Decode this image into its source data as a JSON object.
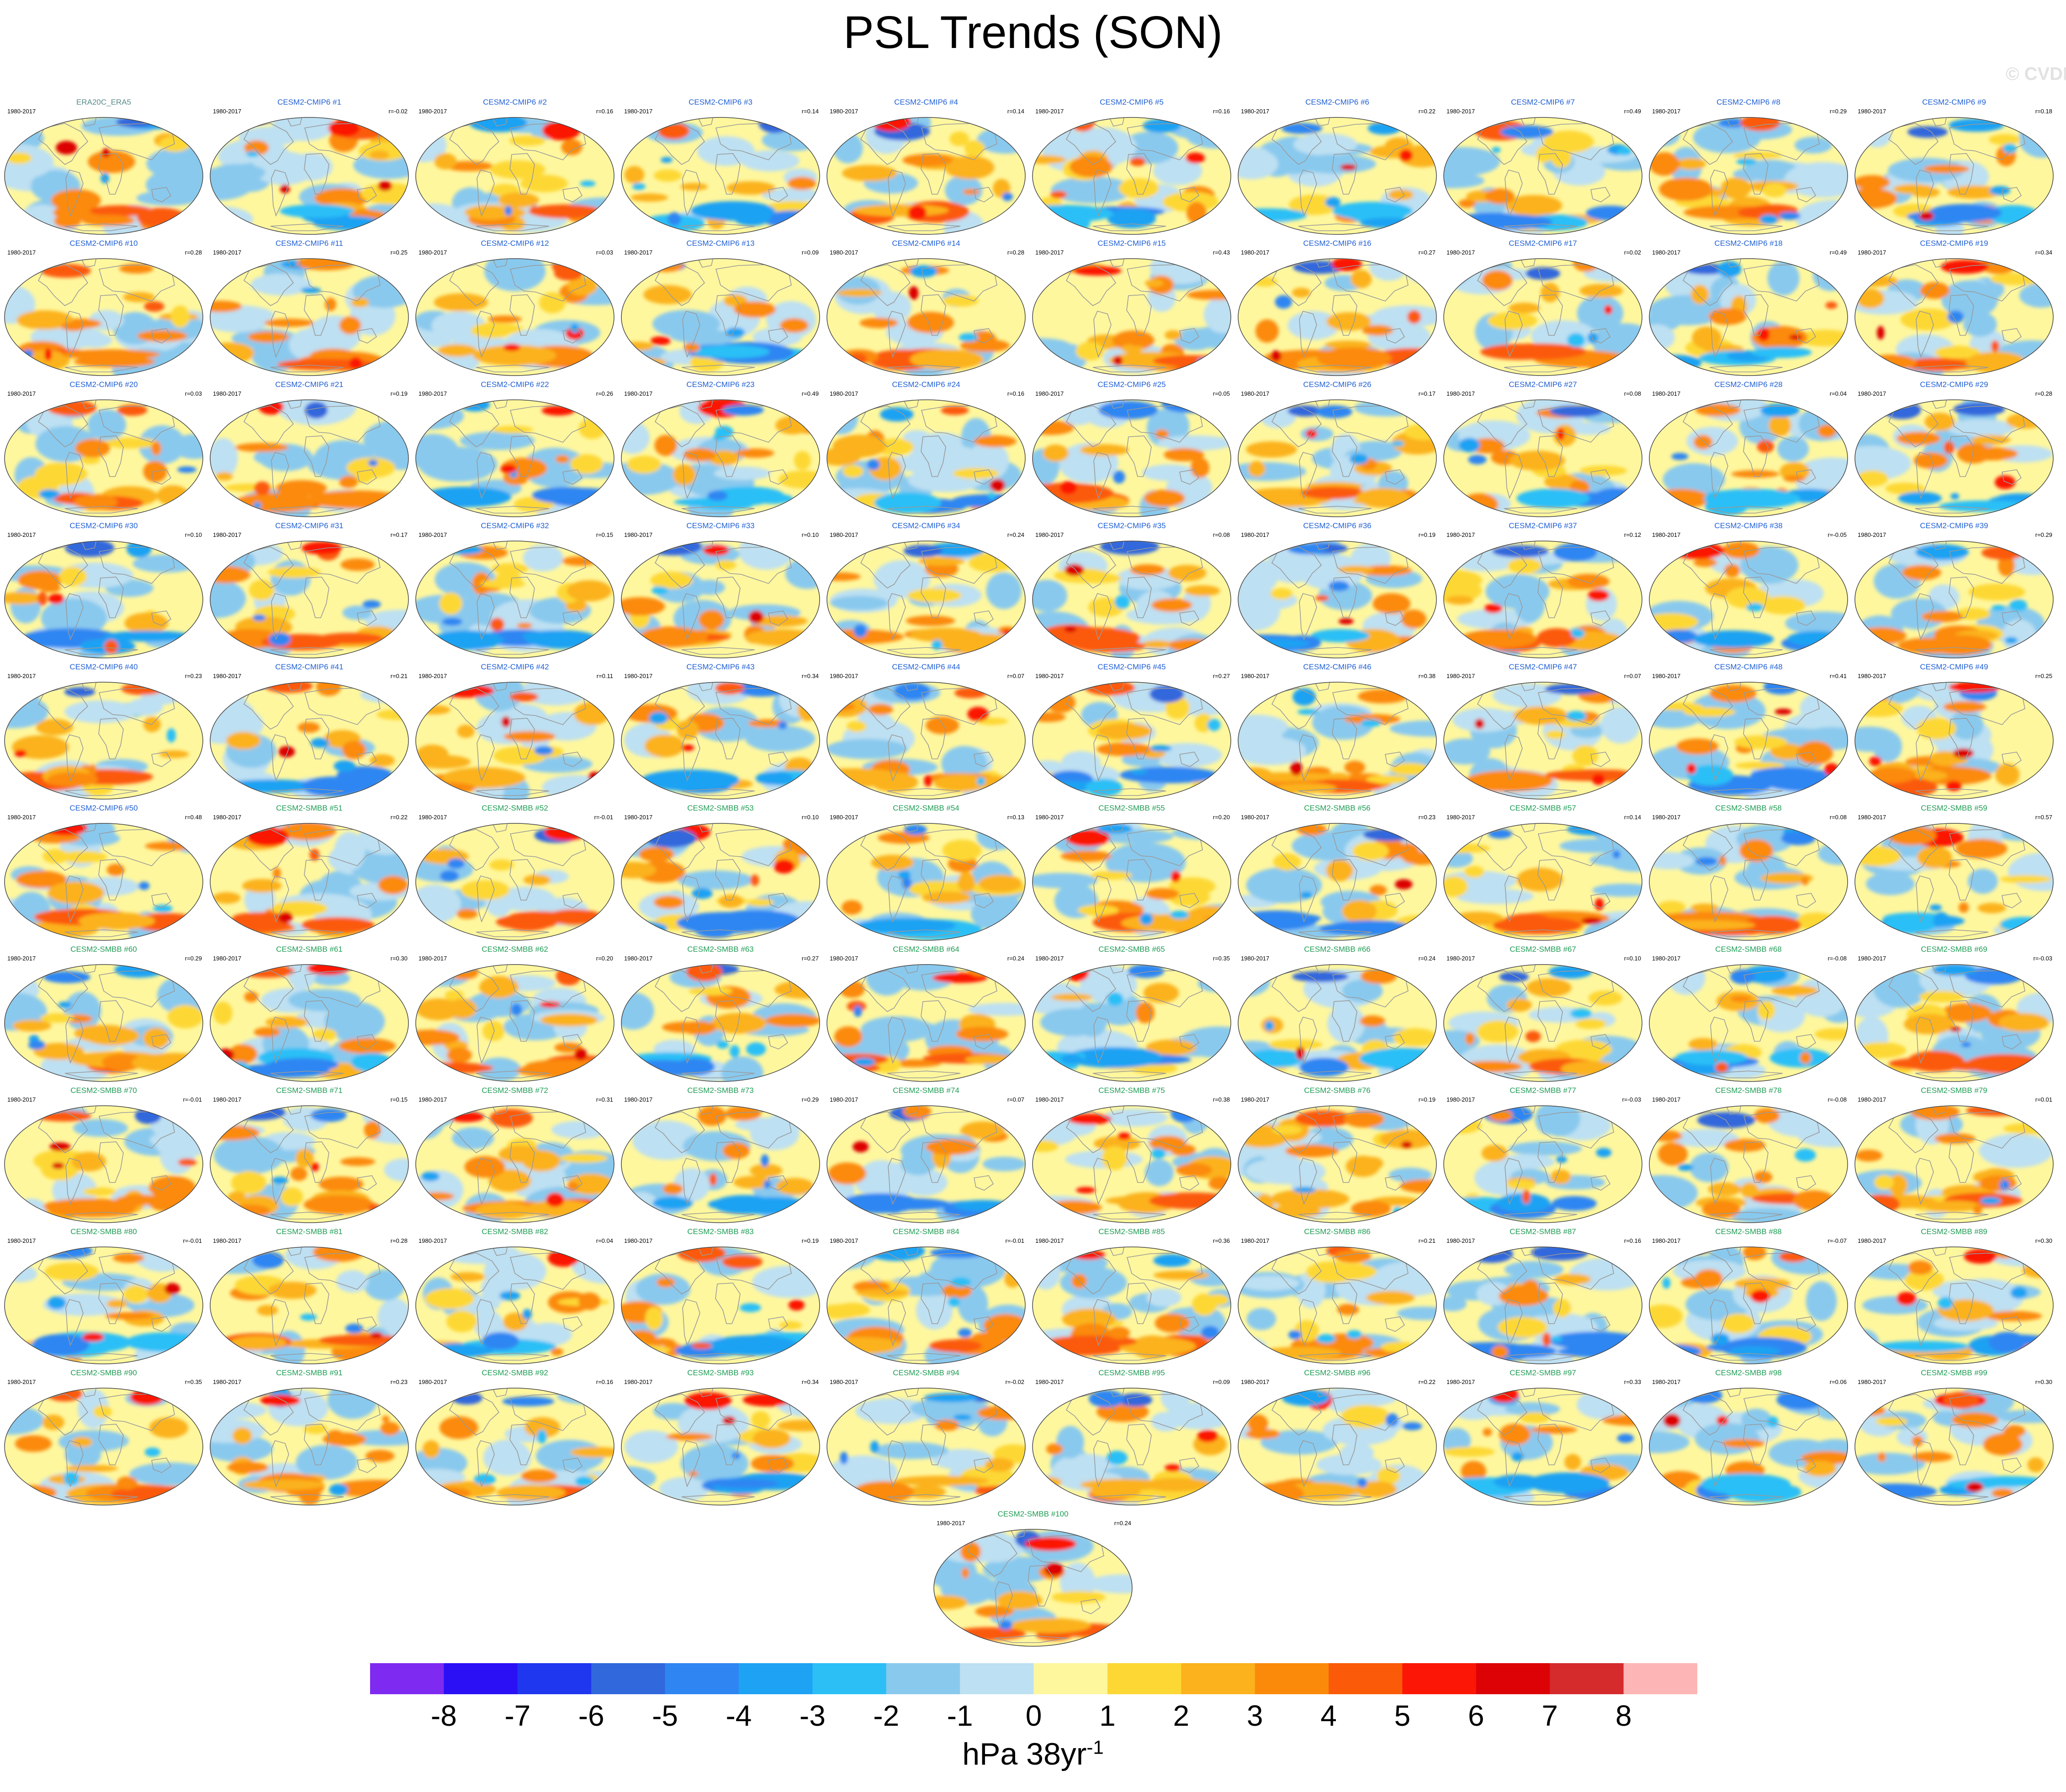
{
  "title": "PSL Trends (SON)",
  "watermark": "© CVDP-LE",
  "colorbar": {
    "colors": [
      "#7f2af0",
      "#2b10f5",
      "#1f37ef",
      "#3168dc",
      "#2f86f2",
      "#1ea2f3",
      "#2cbff6",
      "#89c9ee",
      "#bde0f2",
      "#fff79e",
      "#fdd834",
      "#fbb21d",
      "#fb8a0b",
      "#fb5a08",
      "#fb1606",
      "#dc0205",
      "#d52b2c",
      "#fdb6b5"
    ],
    "tick_labels": [
      "-8",
      "-7",
      "-6",
      "-5",
      "-4",
      "-3",
      "-2",
      "-1",
      "0",
      "1",
      "2",
      "3",
      "4",
      "5",
      "6",
      "7",
      "8"
    ],
    "units_main": "hPa 38yr",
    "units_sup": "-1"
  },
  "chart_data": {
    "type": "map-panel-grid",
    "title": "PSL Trends (SON)",
    "variable": "PSL",
    "season": "SON",
    "units": "hPa 38yr-1",
    "colorbar_range": [
      -8,
      8
    ],
    "colorbar_interval": 1,
    "projection": "Robinson",
    "panels": [
      {
        "name": "ERA20C_ERA5",
        "period": "1980-2017",
        "r": "",
        "reference": true
      },
      {
        "name": "CESM2-CMIP6 #1",
        "period": "1980-2017",
        "r": "r=-0.02"
      },
      {
        "name": "CESM2-CMIP6 #2",
        "period": "1980-2017",
        "r": "r=0.16"
      },
      {
        "name": "CESM2-CMIP6 #3",
        "period": "1980-2017",
        "r": "r=0.14"
      },
      {
        "name": "CESM2-CMIP6 #4",
        "period": "1980-2017",
        "r": "r=0.14"
      },
      {
        "name": "CESM2-CMIP6 #5",
        "period": "1980-2017",
        "r": "r=0.16"
      },
      {
        "name": "CESM2-CMIP6 #6",
        "period": "1980-2017",
        "r": "r=0.22"
      },
      {
        "name": "CESM2-CMIP6 #7",
        "period": "1980-2017",
        "r": "r=0.49"
      },
      {
        "name": "CESM2-CMIP6 #8",
        "period": "1980-2017",
        "r": "r=0.29"
      },
      {
        "name": "CESM2-CMIP6 #9",
        "period": "1980-2017",
        "r": "r=0.18"
      },
      {
        "name": "CESM2-CMIP6 #10",
        "period": "1980-2017",
        "r": "r=0.28"
      },
      {
        "name": "CESM2-CMIP6 #11",
        "period": "1980-2017",
        "r": "r=0.25"
      },
      {
        "name": "CESM2-CMIP6 #12",
        "period": "1980-2017",
        "r": "r=0.03"
      },
      {
        "name": "CESM2-CMIP6 #13",
        "period": "1980-2017",
        "r": "r=0.09"
      },
      {
        "name": "CESM2-CMIP6 #14",
        "period": "1980-2017",
        "r": "r=0.28"
      },
      {
        "name": "CESM2-CMIP6 #15",
        "period": "1980-2017",
        "r": "r=0.43"
      },
      {
        "name": "CESM2-CMIP6 #16",
        "period": "1980-2017",
        "r": "r=0.27"
      },
      {
        "name": "CESM2-CMIP6 #17",
        "period": "1980-2017",
        "r": "r=0.02"
      },
      {
        "name": "CESM2-CMIP6 #18",
        "period": "1980-2017",
        "r": "r=0.49"
      },
      {
        "name": "CESM2-CMIP6 #19",
        "period": "1980-2017",
        "r": "r=0.34"
      },
      {
        "name": "CESM2-CMIP6 #20",
        "period": "1980-2017",
        "r": "r=0.03"
      },
      {
        "name": "CESM2-CMIP6 #21",
        "period": "1980-2017",
        "r": "r=0.19"
      },
      {
        "name": "CESM2-CMIP6 #22",
        "period": "1980-2017",
        "r": "r=0.26"
      },
      {
        "name": "CESM2-CMIP6 #23",
        "period": "1980-2017",
        "r": "r=0.49"
      },
      {
        "name": "CESM2-CMIP6 #24",
        "period": "1980-2017",
        "r": "r=0.16"
      },
      {
        "name": "CESM2-CMIP6 #25",
        "period": "1980-2017",
        "r": "r=0.05"
      },
      {
        "name": "CESM2-CMIP6 #26",
        "period": "1980-2017",
        "r": "r=0.17"
      },
      {
        "name": "CESM2-CMIP6 #27",
        "period": "1980-2017",
        "r": "r=0.08"
      },
      {
        "name": "CESM2-CMIP6 #28",
        "period": "1980-2017",
        "r": "r=0.04"
      },
      {
        "name": "CESM2-CMIP6 #29",
        "period": "1980-2017",
        "r": "r=0.28"
      },
      {
        "name": "CESM2-CMIP6 #30",
        "period": "1980-2017",
        "r": "r=0.10"
      },
      {
        "name": "CESM2-CMIP6 #31",
        "period": "1980-2017",
        "r": "r=0.17"
      },
      {
        "name": "CESM2-CMIP6 #32",
        "period": "1980-2017",
        "r": "r=0.15"
      },
      {
        "name": "CESM2-CMIP6 #33",
        "period": "1980-2017",
        "r": "r=0.10"
      },
      {
        "name": "CESM2-CMIP6 #34",
        "period": "1980-2017",
        "r": "r=0.24"
      },
      {
        "name": "CESM2-CMIP6 #35",
        "period": "1980-2017",
        "r": "r=0.08"
      },
      {
        "name": "CESM2-CMIP6 #36",
        "period": "1980-2017",
        "r": "r=0.19"
      },
      {
        "name": "CESM2-CMIP6 #37",
        "period": "1980-2017",
        "r": "r=0.12"
      },
      {
        "name": "CESM2-CMIP6 #38",
        "period": "1980-2017",
        "r": "r=-0.05"
      },
      {
        "name": "CESM2-CMIP6 #39",
        "period": "1980-2017",
        "r": "r=0.29"
      },
      {
        "name": "CESM2-CMIP6 #40",
        "period": "1980-2017",
        "r": "r=0.23"
      },
      {
        "name": "CESM2-CMIP6 #41",
        "period": "1980-2017",
        "r": "r=0.21"
      },
      {
        "name": "CESM2-CMIP6 #42",
        "period": "1980-2017",
        "r": "r=0.11"
      },
      {
        "name": "CESM2-CMIP6 #43",
        "period": "1980-2017",
        "r": "r=0.34"
      },
      {
        "name": "CESM2-CMIP6 #44",
        "period": "1980-2017",
        "r": "r=0.07"
      },
      {
        "name": "CESM2-CMIP6 #45",
        "period": "1980-2017",
        "r": "r=0.27"
      },
      {
        "name": "CESM2-CMIP6 #46",
        "period": "1980-2017",
        "r": "r=0.38"
      },
      {
        "name": "CESM2-CMIP6 #47",
        "period": "1980-2017",
        "r": "r=0.07"
      },
      {
        "name": "CESM2-CMIP6 #48",
        "period": "1980-2017",
        "r": "r=0.41"
      },
      {
        "name": "CESM2-CMIP6 #49",
        "period": "1980-2017",
        "r": "r=0.25"
      },
      {
        "name": "CESM2-CMIP6 #50",
        "period": "1980-2017",
        "r": "r=0.48"
      },
      {
        "name": "CESM2-SMBB #51",
        "period": "1980-2017",
        "r": "r=0.22"
      },
      {
        "name": "CESM2-SMBB #52",
        "period": "1980-2017",
        "r": "r=-0.01"
      },
      {
        "name": "CESM2-SMBB #53",
        "period": "1980-2017",
        "r": "r=0.10"
      },
      {
        "name": "CESM2-SMBB #54",
        "period": "1980-2017",
        "r": "r=0.13"
      },
      {
        "name": "CESM2-SMBB #55",
        "period": "1980-2017",
        "r": "r=0.20"
      },
      {
        "name": "CESM2-SMBB #56",
        "period": "1980-2017",
        "r": "r=0.23"
      },
      {
        "name": "CESM2-SMBB #57",
        "period": "1980-2017",
        "r": "r=0.14"
      },
      {
        "name": "CESM2-SMBB #58",
        "period": "1980-2017",
        "r": "r=0.08"
      },
      {
        "name": "CESM2-SMBB #59",
        "period": "1980-2017",
        "r": "r=0.57"
      },
      {
        "name": "CESM2-SMBB #60",
        "period": "1980-2017",
        "r": "r=0.29"
      },
      {
        "name": "CESM2-SMBB #61",
        "period": "1980-2017",
        "r": "r=0.30"
      },
      {
        "name": "CESM2-SMBB #62",
        "period": "1980-2017",
        "r": "r=0.20"
      },
      {
        "name": "CESM2-SMBB #63",
        "period": "1980-2017",
        "r": "r=0.27"
      },
      {
        "name": "CESM2-SMBB #64",
        "period": "1980-2017",
        "r": "r=0.24"
      },
      {
        "name": "CESM2-SMBB #65",
        "period": "1980-2017",
        "r": "r=0.35"
      },
      {
        "name": "CESM2-SMBB #66",
        "period": "1980-2017",
        "r": "r=0.24"
      },
      {
        "name": "CESM2-SMBB #67",
        "period": "1980-2017",
        "r": "r=0.10"
      },
      {
        "name": "CESM2-SMBB #68",
        "period": "1980-2017",
        "r": "r=-0.08"
      },
      {
        "name": "CESM2-SMBB #69",
        "period": "1980-2017",
        "r": "r=-0.03"
      },
      {
        "name": "CESM2-SMBB #70",
        "period": "1980-2017",
        "r": "r=-0.01"
      },
      {
        "name": "CESM2-SMBB #71",
        "period": "1980-2017",
        "r": "r=0.15"
      },
      {
        "name": "CESM2-SMBB #72",
        "period": "1980-2017",
        "r": "r=0.31"
      },
      {
        "name": "CESM2-SMBB #73",
        "period": "1980-2017",
        "r": "r=0.29"
      },
      {
        "name": "CESM2-SMBB #74",
        "period": "1980-2017",
        "r": "r=0.07"
      },
      {
        "name": "CESM2-SMBB #75",
        "period": "1980-2017",
        "r": "r=0.38"
      },
      {
        "name": "CESM2-SMBB #76",
        "period": "1980-2017",
        "r": "r=0.19"
      },
      {
        "name": "CESM2-SMBB #77",
        "period": "1980-2017",
        "r": "r=-0.03"
      },
      {
        "name": "CESM2-SMBB #78",
        "period": "1980-2017",
        "r": "r=-0.08"
      },
      {
        "name": "CESM2-SMBB #79",
        "period": "1980-2017",
        "r": "r=0.01"
      },
      {
        "name": "CESM2-SMBB #80",
        "period": "1980-2017",
        "r": "r=-0.01"
      },
      {
        "name": "CESM2-SMBB #81",
        "period": "1980-2017",
        "r": "r=0.28"
      },
      {
        "name": "CESM2-SMBB #82",
        "period": "1980-2017",
        "r": "r=0.04"
      },
      {
        "name": "CESM2-SMBB #83",
        "period": "1980-2017",
        "r": "r=0.19"
      },
      {
        "name": "CESM2-SMBB #84",
        "period": "1980-2017",
        "r": "r=-0.01"
      },
      {
        "name": "CESM2-SMBB #85",
        "period": "1980-2017",
        "r": "r=0.36"
      },
      {
        "name": "CESM2-SMBB #86",
        "period": "1980-2017",
        "r": "r=0.21"
      },
      {
        "name": "CESM2-SMBB #87",
        "period": "1980-2017",
        "r": "r=0.16"
      },
      {
        "name": "CESM2-SMBB #88",
        "period": "1980-2017",
        "r": "r=-0.07"
      },
      {
        "name": "CESM2-SMBB #89",
        "period": "1980-2017",
        "r": "r=0.30"
      },
      {
        "name": "CESM2-SMBB #90",
        "period": "1980-2017",
        "r": "r=0.35"
      },
      {
        "name": "CESM2-SMBB #91",
        "period": "1980-2017",
        "r": "r=0.23"
      },
      {
        "name": "CESM2-SMBB #92",
        "period": "1980-2017",
        "r": "r=0.16"
      },
      {
        "name": "CESM2-SMBB #93",
        "period": "1980-2017",
        "r": "r=0.34"
      },
      {
        "name": "CESM2-SMBB #94",
        "period": "1980-2017",
        "r": "r=-0.02"
      },
      {
        "name": "CESM2-SMBB #95",
        "period": "1980-2017",
        "r": "r=0.09"
      },
      {
        "name": "CESM2-SMBB #96",
        "period": "1980-2017",
        "r": "r=0.22"
      },
      {
        "name": "CESM2-SMBB #97",
        "period": "1980-2017",
        "r": "r=0.33"
      },
      {
        "name": "CESM2-SMBB #98",
        "period": "1980-2017",
        "r": "r=0.06"
      },
      {
        "name": "CESM2-SMBB #99",
        "period": "1980-2017",
        "r": "r=0.30"
      },
      {
        "name": "CESM2-SMBB #100",
        "period": "1980-2017",
        "r": "r=0.24"
      }
    ]
  }
}
